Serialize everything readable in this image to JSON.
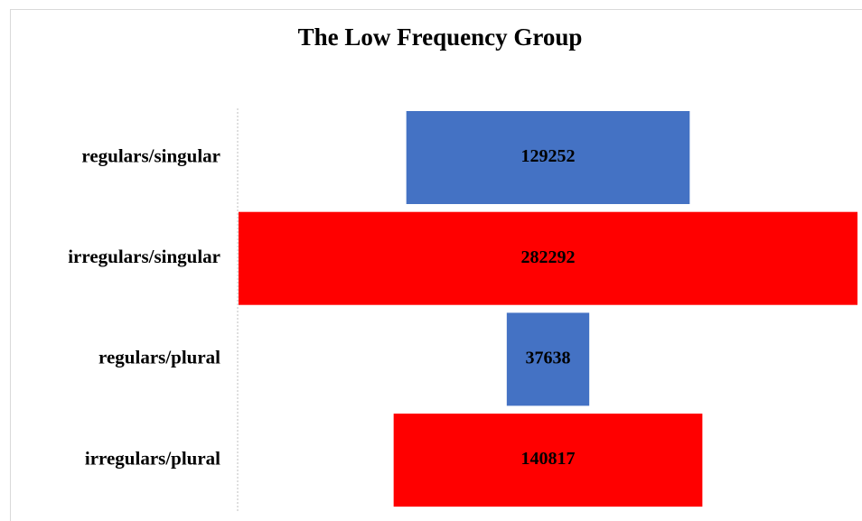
{
  "chart_data": {
    "type": "funnel",
    "title": "The Low Frequency Group",
    "categories": [
      "regulars/singular",
      "irregulars/singular",
      "regulars/plural",
      "irregulars/plural"
    ],
    "values": [
      129252,
      282292,
      37638,
      140817
    ],
    "colors": [
      "#4472c4",
      "#ff0000",
      "#4472c4",
      "#ff0000"
    ]
  }
}
